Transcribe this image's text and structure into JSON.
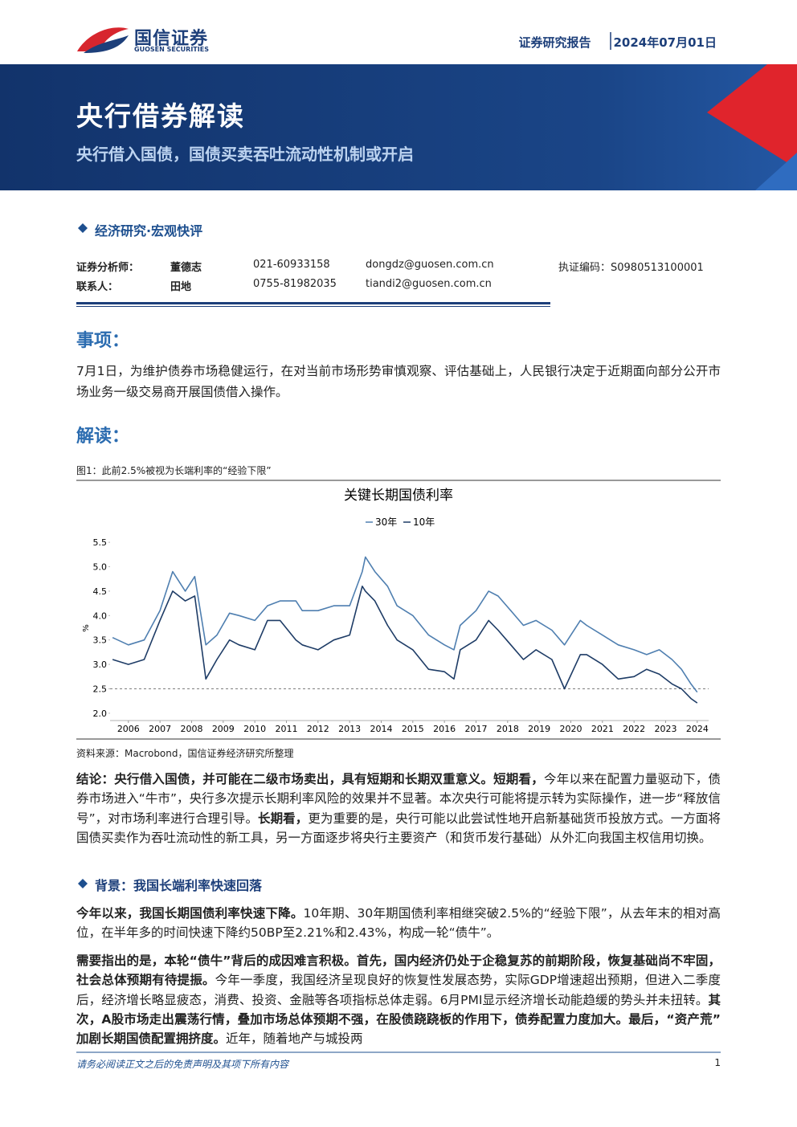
{
  "header": {
    "brand": "国信证券",
    "brand_en": "GUOSEN SECURITIES",
    "report_type": "证券研究报告",
    "date": "2024年07月01日"
  },
  "banner": {
    "title": "央行借券解读",
    "subtitle": "央行借入国债，国债买卖吞吐流动性机制或开启"
  },
  "category": "经济研究·宏观快评",
  "contacts": [
    [
      "证券分析师：",
      "董德志",
      "021-60933158",
      "dongdz@guosen.com.cn",
      "执证编码：S0980513100001"
    ],
    [
      "联系人：",
      "田地",
      "0755-81982035",
      "tiandi2@guosen.com.cn"
    ]
  ],
  "event": {
    "heading": "事项：",
    "text": "7月1日，为维护债券市场稳健运行，在对当前市场形势审慎观察、评估基础上，人民银行决定于近期面向部分公开市场业务一级交易商开展国债借入操作。"
  },
  "analysis_heading": "解读：",
  "figure": {
    "caption": "图1：此前2.5%被视为长端利率的“经验下限”",
    "source": "资料来源：Macrobond，国信证券经济研究所整理"
  },
  "chart_data": {
    "type": "line",
    "title": "关键长期国债利率",
    "y_label": "%",
    "x": [
      2006.0,
      2006.5,
      2007.0,
      2007.5,
      2007.9,
      2008.3,
      2008.6,
      2008.95,
      2009.3,
      2009.7,
      2010.0,
      2010.5,
      2010.9,
      2011.3,
      2011.8,
      2012.0,
      2012.5,
      2013.0,
      2013.5,
      2013.9,
      2014.0,
      2014.3,
      2014.7,
      2015.0,
      2015.5,
      2016.0,
      2016.5,
      2016.8,
      2017.0,
      2017.5,
      2017.9,
      2018.2,
      2018.6,
      2019.0,
      2019.4,
      2019.9,
      2020.3,
      2020.8,
      2021.0,
      2021.5,
      2022.0,
      2022.5,
      2022.9,
      2023.3,
      2023.7,
      2024.0,
      2024.3,
      2024.5
    ],
    "series": [
      {
        "name": "30年",
        "color": "#4f7fb0",
        "values": [
          3.55,
          3.4,
          3.5,
          4.1,
          4.9,
          4.5,
          4.8,
          3.4,
          3.6,
          4.05,
          4.0,
          3.9,
          4.2,
          4.3,
          4.3,
          4.1,
          4.1,
          4.2,
          4.2,
          4.9,
          5.2,
          4.9,
          4.6,
          4.2,
          4.0,
          3.6,
          3.4,
          3.3,
          3.8,
          4.1,
          4.5,
          4.4,
          4.1,
          3.8,
          3.9,
          3.7,
          3.4,
          3.9,
          3.8,
          3.6,
          3.4,
          3.3,
          3.2,
          3.3,
          3.1,
          2.9,
          2.6,
          2.43
        ]
      },
      {
        "name": "10年",
        "color": "#1e3c66",
        "values": [
          3.1,
          3.0,
          3.1,
          3.9,
          4.5,
          4.3,
          4.4,
          2.7,
          3.1,
          3.5,
          3.4,
          3.3,
          3.9,
          3.9,
          3.5,
          3.4,
          3.3,
          3.5,
          3.6,
          4.6,
          4.5,
          4.3,
          3.8,
          3.5,
          3.3,
          2.9,
          2.85,
          2.7,
          3.3,
          3.5,
          3.9,
          3.7,
          3.4,
          3.1,
          3.3,
          3.1,
          2.5,
          3.2,
          3.2,
          3.0,
          2.7,
          2.75,
          2.9,
          2.8,
          2.6,
          2.5,
          2.3,
          2.21
        ]
      }
    ],
    "xlim": [
      2005.92,
      2024.86
    ],
    "xticks": [
      {
        "value": 2006.5,
        "label": "2006"
      },
      {
        "value": 2007.5,
        "label": "2007"
      },
      {
        "value": 2008.5,
        "label": "2008"
      },
      {
        "value": 2009.5,
        "label": "2009"
      },
      {
        "value": 2010.5,
        "label": "2010"
      },
      {
        "value": 2011.5,
        "label": "2011"
      },
      {
        "value": 2012.5,
        "label": "2012"
      },
      {
        "value": 2013.5,
        "label": "2013"
      },
      {
        "value": 2014.5,
        "label": "2014"
      },
      {
        "value": 2015.5,
        "label": "2015"
      },
      {
        "value": 2016.5,
        "label": "2016"
      },
      {
        "value": 2017.5,
        "label": "2017"
      },
      {
        "value": 2018.5,
        "label": "2018"
      },
      {
        "value": 2019.5,
        "label": "2019"
      },
      {
        "value": 2020.5,
        "label": "2020"
      },
      {
        "value": 2021.5,
        "label": "2021"
      },
      {
        "value": 2022.5,
        "label": "2022"
      },
      {
        "value": 2023.5,
        "label": "2023"
      },
      {
        "value": 2024.5,
        "label": "2024"
      }
    ],
    "ylim": [
      1.85,
      5.65
    ],
    "yticks": [
      {
        "value": 2,
        "label": "2.0"
      },
      2.5,
      {
        "value": 3,
        "label": "3.0"
      },
      3.5,
      {
        "value": 4,
        "label": "4.0"
      },
      4.5,
      {
        "value": 5,
        "label": "5.0"
      },
      5.5
    ],
    "reference_line": 2.5,
    "grid": false,
    "legend": "top"
  },
  "body": [
    {
      "runs": [
        {
          "text": "结论：央行借入国债，并可能在二级市场卖出，具有短期和长期双重意义。短期看，",
          "bold": true
        },
        {
          "text": "今年以来在配置力量驱动下，债券市场进入“牛市”，央行多次提示长期利率风险的效果并不显著。本次央行可能将提示转为实际操作，进一步“释放信号”，对市场利率进行合理引导。",
          "bold": false
        },
        {
          "text": "长期看，",
          "bold": true
        },
        {
          "text": "更为重要的是，央行可能以此尝试性地开启新基础货币投放方式。一方面将国债买卖作为吞吐流动性的新工具，另一方面逐步将央行主要资产（和货币发行基础）从外汇向我国主权信用切换。",
          "bold": false
        }
      ]
    },
    {
      "heading": "背景：我国长端利率快速回落"
    },
    {
      "runs": [
        {
          "text": "今年以来，我国长期国债利率快速下降。",
          "bold": true
        },
        {
          "text": "10年期、30年期国债利率相继突破2.5%的“经验下限”，从去年末的相对高位，在半年多的时间快速下降约50BP至2.21%和2.43%，构成一轮“债牛”。",
          "bold": false
        }
      ]
    },
    {
      "runs": [
        {
          "text": "需要指出的是，本轮“债牛”背后的成因难言积极。首先，国内经济仍处于企稳复苏的前期阶段，恢复基础尚不牢固，社会总体预期有待提振。",
          "bold": true
        },
        {
          "text": "今年一季度，我国经济呈现良好的恢复性发展态势，实际GDP增速超出预期，但进入二季度后，经济增长略显疲态，消费、投资、金融等各项指标总体走弱。6月PMI显示经济增长动能趋缓的势头并未扭转。",
          "bold": false
        },
        {
          "text": "其次，A股市场走出震荡行情，叠加市场总体预期不强，在股债跷跷板的作用下，债券配置力度加大。最后，“资产荒”加剧长期国债配置拥挤度。",
          "bold": true
        },
        {
          "text": "近年，随着地产与城投两",
          "bold": false
        }
      ]
    }
  ],
  "footer": {
    "disclaimer": "请务必阅读正文之后的免责声明及其项下所有内容",
    "page": 1
  }
}
